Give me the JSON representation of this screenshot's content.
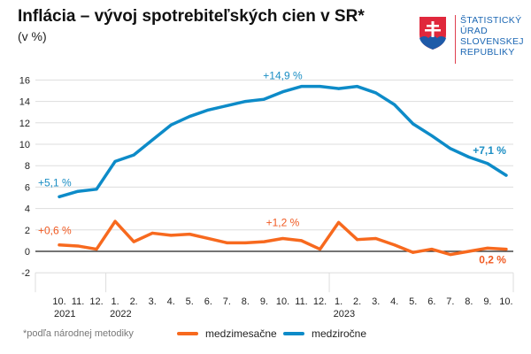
{
  "title": "Inflácia – vývoj spotrebiteľských cien v SR*",
  "subtitle": "(v %)",
  "logo": {
    "lines": [
      "ŠTATISTICKÝ",
      "ÚRAD",
      "SLOVENSKEJ",
      "REPUBLIKY"
    ]
  },
  "footnote": "*podľa národnej metodiky",
  "chart_data": {
    "type": "line",
    "x": [
      "10.",
      "11.",
      "12.",
      "1.",
      "2.",
      "3.",
      "4.",
      "5.",
      "6.",
      "7.",
      "8.",
      "9.",
      "10.",
      "11.",
      "12.",
      "1.",
      "2.",
      "3.",
      "4.",
      "5.",
      "6.",
      "7.",
      "8.",
      "9.",
      "10."
    ],
    "year_labels": [
      {
        "index": 0,
        "label": "2021"
      },
      {
        "index": 3,
        "label": "2022"
      },
      {
        "index": 15,
        "label": "2023"
      }
    ],
    "ylim": [
      -2,
      16
    ],
    "yticks": [
      -2,
      0,
      2,
      4,
      6,
      8,
      10,
      12,
      14,
      16
    ],
    "grid": true,
    "legend_position": "bottom",
    "series": [
      {
        "name": "medzimesačne",
        "color": "#f7691e",
        "values": [
          0.6,
          0.5,
          0.2,
          2.8,
          0.9,
          1.7,
          1.5,
          1.6,
          1.2,
          0.8,
          0.8,
          0.9,
          1.2,
          1.0,
          0.2,
          2.7,
          1.1,
          1.2,
          0.6,
          -0.1,
          0.2,
          -0.3,
          0.0,
          0.3,
          0.2
        ]
      },
      {
        "name": "medziročne",
        "color": "#0d8bc8",
        "values": [
          5.1,
          5.6,
          5.8,
          8.4,
          9.0,
          10.4,
          11.8,
          12.6,
          13.2,
          13.6,
          14.0,
          14.2,
          14.9,
          15.4,
          15.4,
          15.2,
          15.4,
          14.8,
          13.7,
          11.9,
          10.8,
          9.6,
          8.8,
          8.2,
          7.1
        ]
      }
    ],
    "annotations": [
      {
        "series": 1,
        "index": 0,
        "text": "+5,1 %",
        "bold": false
      },
      {
        "series": 1,
        "index": 12,
        "text": "+14,9 %",
        "bold": false
      },
      {
        "series": 1,
        "index": 24,
        "text": "+7,1 %",
        "bold": true
      },
      {
        "series": 0,
        "index": 0,
        "text": "+0,6 %",
        "bold": false
      },
      {
        "series": 0,
        "index": 12,
        "text": "+1,2 %",
        "bold": false
      },
      {
        "series": 0,
        "index": 24,
        "text": "0,2 %",
        "bold": true
      }
    ]
  }
}
